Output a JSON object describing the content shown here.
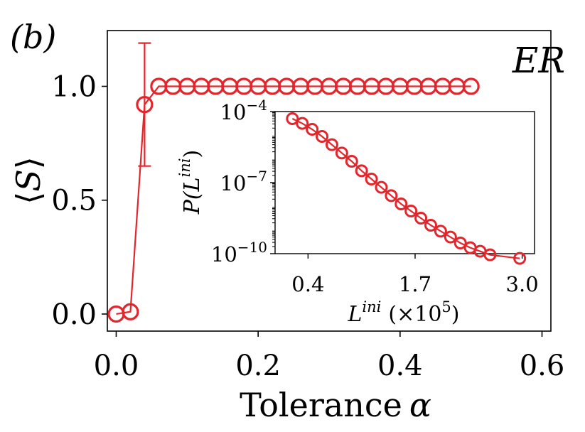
{
  "panel_label": "(b)",
  "network_label": "ER",
  "colors": {
    "series": "#e3262c",
    "axis": "#000000",
    "background": "#ffffff"
  },
  "chart_data": [
    {
      "name": "main",
      "type": "line",
      "xlabel_text": "Tolerance",
      "xlabel_symbol": "α",
      "ylabel_open": "⟨",
      "ylabel_symbol": "S",
      "ylabel_close": "⟩",
      "xlim": [
        -0.0125,
        0.6125
      ],
      "ylim": [
        -0.075,
        1.245
      ],
      "x_ticks": [
        0.0,
        0.2,
        0.4,
        0.6
      ],
      "x_tick_labels": [
        "0.0",
        "0.2",
        "0.4",
        "0.6"
      ],
      "y_ticks": [
        0.0,
        0.5,
        1.0
      ],
      "y_tick_labels": [
        "0.0",
        "0.5",
        "1.0"
      ],
      "series": [
        {
          "name": "ER",
          "x": [
            0.0,
            0.02,
            0.04,
            0.06,
            0.08,
            0.1,
            0.12,
            0.14,
            0.16,
            0.18,
            0.2,
            0.22,
            0.24,
            0.26,
            0.28,
            0.3,
            0.32,
            0.34,
            0.36,
            0.38,
            0.4,
            0.42,
            0.44,
            0.46,
            0.48,
            0.5
          ],
          "y": [
            0.0,
            0.01,
            0.92,
            1.0,
            1.0,
            1.0,
            1.0,
            1.0,
            1.0,
            1.0,
            1.0,
            1.0,
            1.0,
            1.0,
            1.0,
            1.0,
            1.0,
            1.0,
            1.0,
            1.0,
            1.0,
            1.0,
            1.0,
            1.0,
            1.0,
            1.0
          ],
          "error": [
            0,
            0,
            0.27,
            0,
            0,
            0,
            0,
            0,
            0,
            0,
            0,
            0,
            0,
            0,
            0,
            0,
            0,
            0,
            0,
            0,
            0,
            0,
            0,
            0,
            0,
            0
          ]
        }
      ]
    },
    {
      "name": "inset",
      "type": "line",
      "yscale": "log",
      "xlabel_sym": "L",
      "xlabel_sup": "ini",
      "xlabel_unit_open": "(×10",
      "xlabel_unit_sup": "5",
      "xlabel_unit_close": ")",
      "ylabel_p": "P(",
      "ylabel_sym": "L",
      "ylabel_sup": "ini",
      "ylabel_close": ")",
      "xlim": [
        0.0,
        3.15
      ],
      "ylim_log10": [
        -10,
        -4
      ],
      "x_ticks": [
        0.4,
        1.7,
        3.0
      ],
      "x_tick_labels": [
        "0.4",
        "1.7",
        "3.0"
      ],
      "y_ticks_log10": [
        -4,
        -7,
        -10
      ],
      "y_tick_labels": [
        {
          "base": "10",
          "exp": "−4"
        },
        {
          "base": "10",
          "exp": "−7"
        },
        {
          "base": "10",
          "exp": "−10"
        }
      ],
      "series": [
        {
          "name": "P(Lini)",
          "x": [
            0.21,
            0.33,
            0.45,
            0.57,
            0.69,
            0.81,
            0.93,
            1.05,
            1.17,
            1.29,
            1.41,
            1.53,
            1.65,
            1.77,
            1.89,
            2.01,
            2.13,
            2.25,
            2.37,
            2.49,
            2.61,
            2.97
          ],
          "log10_y": [
            -4.3,
            -4.5,
            -4.75,
            -5.05,
            -5.4,
            -5.75,
            -6.1,
            -6.5,
            -6.85,
            -7.2,
            -7.55,
            -7.9,
            -8.2,
            -8.5,
            -8.8,
            -9.05,
            -9.3,
            -9.55,
            -9.75,
            -9.9,
            -10.05,
            -10.2
          ]
        }
      ]
    }
  ]
}
